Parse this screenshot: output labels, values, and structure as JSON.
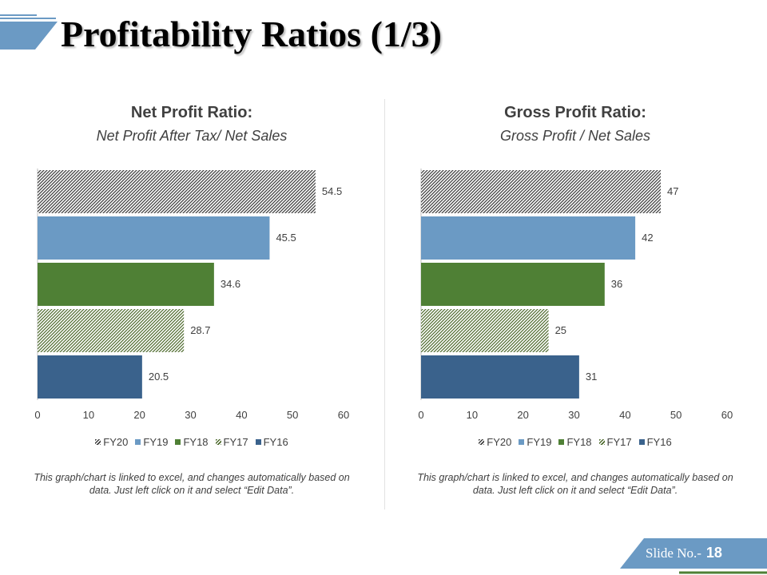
{
  "slide": {
    "title": "Profitability Ratios (1/3)",
    "slide_label": "Slide No.-",
    "slide_number": "18"
  },
  "colors": {
    "FY20": "#404040",
    "FY19": "#6b9ac4",
    "FY18": "#4f8035",
    "FY17": "#4f6b2e",
    "FY16": "#3a628c",
    "accent_blue": "#6b9ac4",
    "accent_green": "#4f8035"
  },
  "chart_data": [
    {
      "type": "bar",
      "orientation": "horizontal",
      "title": "Net Profit Ratio:",
      "subtitle": "Net Profit After Tax/ Net Sales",
      "categories": [
        "FY20",
        "FY19",
        "FY18",
        "FY17",
        "FY16"
      ],
      "values": [
        54.5,
        45.5,
        34.6,
        28.7,
        20.5
      ],
      "value_labels": [
        "54.5",
        "45.5",
        "34.6",
        "28.7",
        "20.5"
      ],
      "xlim": [
        0,
        60
      ],
      "xticks": [
        0,
        10,
        20,
        30,
        40,
        50,
        60
      ],
      "legend": [
        "FY20",
        "FY19",
        "FY18",
        "FY17",
        "FY16"
      ],
      "legend_position": "bottom",
      "grid": false,
      "note": "This graph/chart is linked to excel, and changes automatically based on data. Just left click on it and select “Edit Data”."
    },
    {
      "type": "bar",
      "orientation": "horizontal",
      "title": "Gross Profit Ratio:",
      "subtitle": "Gross Profit / Net Sales",
      "categories": [
        "FY20",
        "FY19",
        "FY18",
        "FY17",
        "FY16"
      ],
      "values": [
        47,
        42,
        36,
        25,
        31
      ],
      "value_labels": [
        "47",
        "42",
        "36",
        "25",
        "31"
      ],
      "xlim": [
        0,
        60
      ],
      "xticks": [
        0,
        10,
        20,
        30,
        40,
        50,
        60
      ],
      "legend": [
        "FY20",
        "FY19",
        "FY18",
        "FY17",
        "FY16"
      ],
      "legend_position": "bottom",
      "grid": false,
      "note": "This graph/chart is linked to excel, and changes automatically based on data. Just left click on it and select “Edit Data”."
    }
  ]
}
